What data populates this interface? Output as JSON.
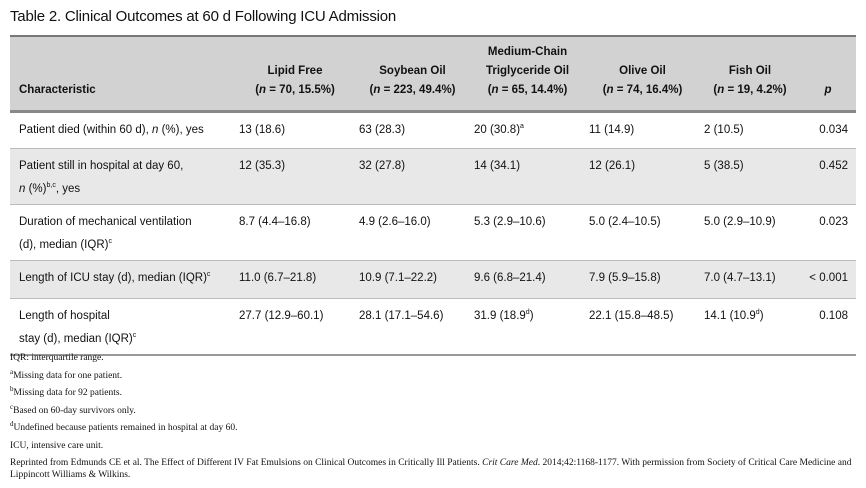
{
  "title": "Table 2.  Clinical Outcomes at 60 d Following ICU Admission",
  "columns": [
    {
      "lines": [
        {
          "t": "Characteristic"
        }
      ]
    },
    {
      "lines": [
        {
          "t": "Lipid Free"
        }
      ],
      "n": [
        {
          "t": "("
        },
        {
          "t": "n",
          "i": true
        },
        {
          "t": " = 70, 15.5%)"
        }
      ]
    },
    {
      "lines": [
        {
          "t": "Soybean Oil"
        }
      ],
      "n": [
        {
          "t": "("
        },
        {
          "t": "n",
          "i": true
        },
        {
          "t": " = 223, 49.4%)"
        }
      ]
    },
    {
      "lines": [
        {
          "t": "Medium-Chain"
        },
        {
          "t": "Triglyceride Oil"
        }
      ],
      "n": [
        {
          "t": "("
        },
        {
          "t": "n",
          "i": true
        },
        {
          "t": " = 65, 14.4%)"
        }
      ]
    },
    {
      "lines": [
        {
          "t": "Olive Oil"
        }
      ],
      "n": [
        {
          "t": "("
        },
        {
          "t": "n",
          "i": true
        },
        {
          "t": " = 74, 16.4%)"
        }
      ]
    },
    {
      "lines": [
        {
          "t": "Fish Oil"
        }
      ],
      "n": [
        {
          "t": "("
        },
        {
          "t": "n",
          "i": true
        },
        {
          "t": " = 19, 4.2%)"
        }
      ]
    },
    {
      "lines": [
        {
          "t": "p",
          "i": true
        }
      ]
    }
  ],
  "rows": [
    {
      "cells": [
        [
          {
            "t": "Patient died (within 60 d), "
          },
          {
            "t": "n",
            "i": true
          },
          {
            "t": " (%), yes"
          }
        ],
        [
          {
            "t": "13 (18.6)"
          }
        ],
        [
          {
            "t": "63 (28.3)"
          }
        ],
        [
          {
            "t": "20 (30.8)"
          },
          {
            "t": "a",
            "s": true
          }
        ],
        [
          {
            "t": "11 (14.9)"
          }
        ],
        [
          {
            "t": "2 (10.5)"
          }
        ],
        [
          {
            "t": "0.034"
          }
        ]
      ]
    },
    {
      "cells": [
        [
          {
            "t": "Patient still in hospital at day 60, "
          },
          {
            "br": true
          },
          {
            "t": "n",
            "i": true
          },
          {
            "t": " (%)"
          },
          {
            "t": "b,c",
            "s": true
          },
          {
            "t": ", yes"
          }
        ],
        [
          {
            "t": "12 (35.3)"
          }
        ],
        [
          {
            "t": "32 (27.8)"
          }
        ],
        [
          {
            "t": "14 (34.1)"
          }
        ],
        [
          {
            "t": "12 (26.1)"
          }
        ],
        [
          {
            "t": "5 (38.5)"
          }
        ],
        [
          {
            "t": "0.452"
          }
        ]
      ]
    },
    {
      "cells": [
        [
          {
            "t": "Duration of mechanical ventilation"
          },
          {
            "br": true
          },
          {
            "t": "(d), median (IQR)"
          },
          {
            "t": "c",
            "s": true
          }
        ],
        [
          {
            "t": "8.7 (4.4–16.8)"
          }
        ],
        [
          {
            "t": "4.9 (2.6–16.0)"
          }
        ],
        [
          {
            "t": "5.3 (2.9–10.6)"
          }
        ],
        [
          {
            "t": "5.0 (2.4–10.5)"
          }
        ],
        [
          {
            "t": "5.0 (2.9–10.9)"
          }
        ],
        [
          {
            "t": "0.023"
          }
        ]
      ]
    },
    {
      "cells": [
        [
          {
            "t": "Length of ICU stay (d), median (IQR)"
          },
          {
            "t": "c",
            "s": true
          }
        ],
        [
          {
            "t": "11.0 (6.7–21.8)"
          }
        ],
        [
          {
            "t": "10.9 (7.1–22.2)"
          }
        ],
        [
          {
            "t": "9.6 (6.8–21.4)"
          }
        ],
        [
          {
            "t": "7.9 (5.9–15.8)"
          }
        ],
        [
          {
            "t": "7.0 (4.7–13.1)"
          }
        ],
        [
          {
            "t": "< 0.001"
          }
        ]
      ]
    },
    {
      "cells": [
        [
          {
            "t": "Length of hospital"
          },
          {
            "br": true
          },
          {
            "t": "stay (d), median (IQR)"
          },
          {
            "t": "c",
            "s": true
          }
        ],
        [
          {
            "t": "27.7 (12.9–60.1)"
          }
        ],
        [
          {
            "t": "28.1 (17.1–54.6)"
          }
        ],
        [
          {
            "t": "31.9 (18.9"
          },
          {
            "t": "d",
            "s": true
          },
          {
            "t": ")"
          }
        ],
        [
          {
            "t": "22.1 (15.8–48.5)"
          }
        ],
        [
          {
            "t": "14.1 (10.9"
          },
          {
            "t": "d",
            "s": true
          },
          {
            "t": ")"
          }
        ],
        [
          {
            "t": "0.108"
          }
        ]
      ]
    }
  ],
  "footnotes": [
    [
      {
        "t": "IQR: interquartile range."
      }
    ],
    [
      {
        "t": "a",
        "s": true
      },
      {
        "t": "Missing data for one patient."
      }
    ],
    [
      {
        "t": "b",
        "s": true
      },
      {
        "t": "Missing data for 92 patients."
      }
    ],
    [
      {
        "t": "c",
        "s": true
      },
      {
        "t": "Based on 60-day survivors only."
      }
    ],
    [
      {
        "t": "d",
        "s": true
      },
      {
        "t": "Undefined because patients remained in hospital at day 60."
      }
    ],
    [
      {
        "t": "ICU, intensive care unit."
      }
    ]
  ],
  "citation": [
    {
      "t": "Reprinted from Edmunds CE et al. The Effect of Different IV Fat Emulsions on Clinical Outcomes in Critically Ill Patients. "
    },
    {
      "t": "Crit Care Med",
      "i": true
    },
    {
      "t": ". 2014;42:1168-1177. With permission from Society of Critical Care Medicine and Lippincott Williams & Wilkins."
    }
  ]
}
